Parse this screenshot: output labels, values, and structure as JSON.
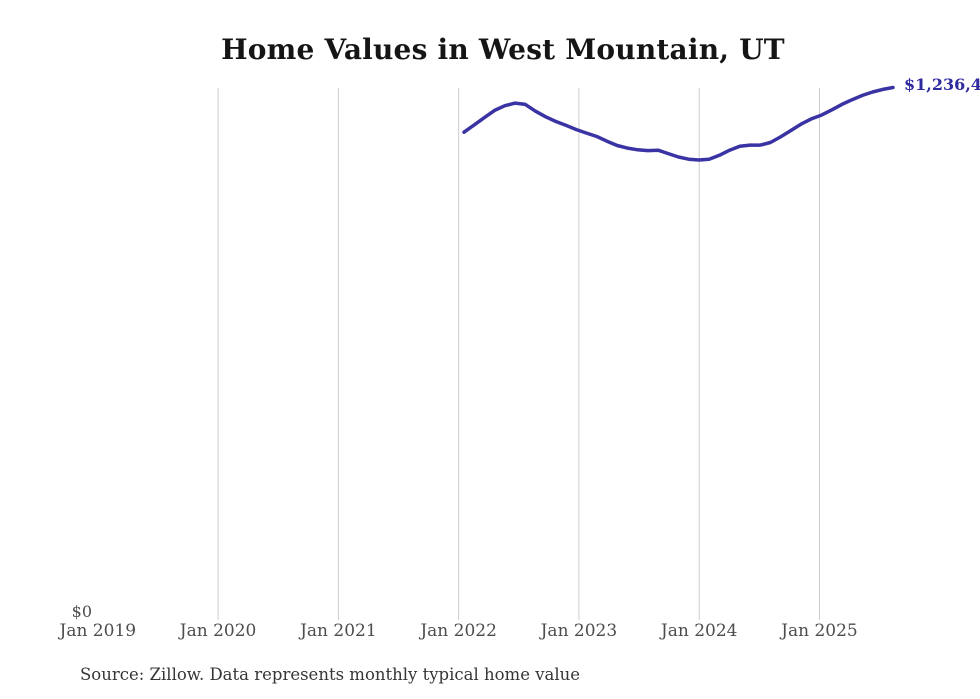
{
  "title": "Home Values in West Mountain, UT",
  "source_note": "Source: Zillow. Data represents monthly typical home value",
  "y_axis": {
    "zero_label": "$0"
  },
  "latest_value_label": "$1,236,4",
  "colors": {
    "line": "#3a33a3",
    "latest_label": "#2f2a9e",
    "grid": "#cccccc",
    "title_text": "#151515",
    "axis_text": "#4d4d4d",
    "source_text": "#363636"
  },
  "chart_data": {
    "type": "line",
    "title": "Home Values in West Mountain, UT",
    "xlabel": "",
    "ylabel": "",
    "x_tick_labels": [
      "Jan 2019",
      "Jan 2020",
      "Jan 2021",
      "Jan 2022",
      "Jan 2023",
      "Jan 2024",
      "Jan 2025"
    ],
    "x_range": [
      "Jan 2019",
      "Aug 2025"
    ],
    "ylim": [
      0,
      1270000
    ],
    "grid": "vertical-only",
    "legend": "none",
    "annotation": "$1,236,4 (latest value, clipped at right edge)",
    "x": [
      "Jan 2022",
      "Feb 2022",
      "Mar 2022",
      "Apr 2022",
      "May 2022",
      "Jun 2022",
      "Jul 2022",
      "Aug 2022",
      "Sep 2022",
      "Oct 2022",
      "Nov 2022",
      "Dec 2022",
      "Jan 2023",
      "Feb 2023",
      "Mar 2023",
      "Apr 2023",
      "May 2023",
      "Jun 2023",
      "Jul 2023",
      "Aug 2023",
      "Sep 2023",
      "Oct 2023",
      "Nov 2023",
      "Dec 2023",
      "Jan 2024",
      "Feb 2024",
      "Mar 2024",
      "Apr 2024",
      "May 2024",
      "Jun 2024",
      "Jul 2024",
      "Aug 2024",
      "Sep 2024",
      "Oct 2024",
      "Nov 2024",
      "Dec 2024",
      "Jan 2025",
      "Feb 2025",
      "Mar 2025",
      "Apr 2025",
      "May 2025",
      "Jun 2025",
      "Jul 2025"
    ],
    "series": [
      {
        "name": "Monthly typical home value ($)",
        "values": [
          1132000,
          1149000,
          1166000,
          1183000,
          1194000,
          1200000,
          1197000,
          1181000,
          1168000,
          1157000,
          1148000,
          1138000,
          1130000,
          1122000,
          1111000,
          1101000,
          1095000,
          1091000,
          1089000,
          1090000,
          1082000,
          1074000,
          1069000,
          1067000,
          1069000,
          1078000,
          1090000,
          1099000,
          1102000,
          1102000,
          1108000,
          1121000,
          1136000,
          1151000,
          1163000,
          1172000,
          1184000,
          1197000,
          1208000,
          1218000,
          1226000,
          1232000,
          1236400
        ]
      }
    ]
  }
}
